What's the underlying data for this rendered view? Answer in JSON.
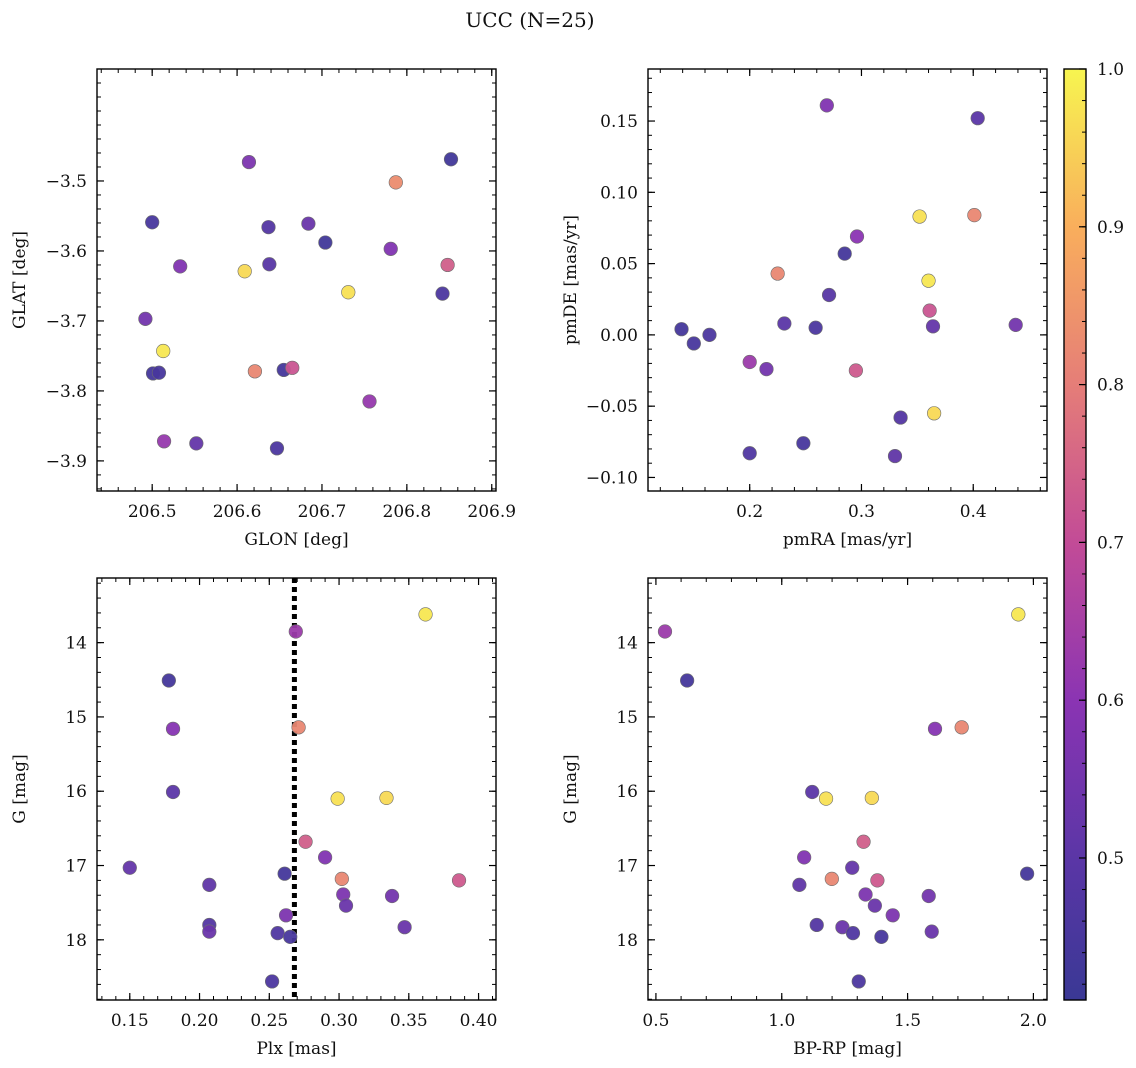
{
  "figure": {
    "title": "UCC (N=25)"
  },
  "colorbar": {
    "range": [
      0.41,
      1.0
    ],
    "ticks": [
      0.5,
      0.6,
      0.7,
      0.8,
      0.9,
      1.0
    ],
    "tick_labels": [
      "0.5",
      "0.6",
      "0.7",
      "0.8",
      "0.9",
      "1.0"
    ],
    "colormap": "plasma"
  },
  "chart_data": [
    {
      "type": "scatter",
      "title": "",
      "xlabel": "GLON [deg]",
      "ylabel": "GLAT [deg]",
      "xlim": [
        206.435,
        206.905
      ],
      "ylim": [
        -3.943,
        -3.34
      ],
      "y_inverted": false,
      "xticks": [
        206.5,
        206.6,
        206.7,
        206.8,
        206.9
      ],
      "xtick_labels": [
        "206.5",
        "206.6",
        "206.7",
        "206.8",
        "206.9"
      ],
      "yticks": [
        -3.5,
        -3.6,
        -3.7,
        -3.8,
        -3.9
      ],
      "ytick_labels": [
        "−3.5",
        "−3.6",
        "−3.7",
        "−3.8",
        "−3.9"
      ],
      "points": [
        {
          "x": 206.5,
          "y": -3.559,
          "c": 0.45
        },
        {
          "x": 206.533,
          "y": -3.622,
          "c": 0.58
        },
        {
          "x": 206.492,
          "y": -3.697,
          "c": 0.55
        },
        {
          "x": 206.513,
          "y": -3.743,
          "c": 0.98
        },
        {
          "x": 206.501,
          "y": -3.775,
          "c": 0.44
        },
        {
          "x": 206.508,
          "y": -3.774,
          "c": 0.45
        },
        {
          "x": 206.514,
          "y": -3.872,
          "c": 0.62
        },
        {
          "x": 206.552,
          "y": -3.875,
          "c": 0.52
        },
        {
          "x": 206.609,
          "y": -3.629,
          "c": 0.96
        },
        {
          "x": 206.614,
          "y": -3.473,
          "c": 0.57
        },
        {
          "x": 206.621,
          "y": -3.772,
          "c": 0.82
        },
        {
          "x": 206.637,
          "y": -3.566,
          "c": 0.48
        },
        {
          "x": 206.638,
          "y": -3.619,
          "c": 0.49
        },
        {
          "x": 206.647,
          "y": -3.882,
          "c": 0.46
        },
        {
          "x": 206.655,
          "y": -3.77,
          "c": 0.44
        },
        {
          "x": 206.665,
          "y": -3.767,
          "c": 0.72
        },
        {
          "x": 206.684,
          "y": -3.561,
          "c": 0.53
        },
        {
          "x": 206.704,
          "y": -3.588,
          "c": 0.43
        },
        {
          "x": 206.731,
          "y": -3.659,
          "c": 0.97
        },
        {
          "x": 206.756,
          "y": -3.815,
          "c": 0.62
        },
        {
          "x": 206.781,
          "y": -3.597,
          "c": 0.58
        },
        {
          "x": 206.787,
          "y": -3.502,
          "c": 0.83
        },
        {
          "x": 206.842,
          "y": -3.661,
          "c": 0.46
        },
        {
          "x": 206.848,
          "y": -3.62,
          "c": 0.74
        },
        {
          "x": 206.852,
          "y": -3.469,
          "c": 0.43
        }
      ]
    },
    {
      "type": "scatter",
      "title": "",
      "xlabel": "pmRA [mas/yr]",
      "ylabel": "pmDE [mas/yr]",
      "xlim": [
        0.109,
        0.466
      ],
      "ylim": [
        -0.1095,
        0.1865
      ],
      "y_inverted": false,
      "xticks": [
        0.2,
        0.3,
        0.4
      ],
      "xtick_labels": [
        "0.2",
        "0.3",
        "0.4"
      ],
      "yticks": [
        0.15,
        0.1,
        0.05,
        0.0,
        -0.05,
        -0.1
      ],
      "ytick_labels": [
        "0.15",
        "0.10",
        "0.05",
        "0.00",
        "−0.05",
        "−0.10"
      ],
      "points": [
        {
          "x": 0.139,
          "y": 0.004,
          "c": 0.44
        },
        {
          "x": 0.15,
          "y": -0.006,
          "c": 0.45
        },
        {
          "x": 0.164,
          "y": 0.0,
          "c": 0.46
        },
        {
          "x": 0.2,
          "y": -0.019,
          "c": 0.63
        },
        {
          "x": 0.2,
          "y": -0.083,
          "c": 0.47
        },
        {
          "x": 0.215,
          "y": -0.024,
          "c": 0.55
        },
        {
          "x": 0.225,
          "y": 0.043,
          "c": 0.82
        },
        {
          "x": 0.231,
          "y": 0.008,
          "c": 0.5
        },
        {
          "x": 0.248,
          "y": -0.076,
          "c": 0.45
        },
        {
          "x": 0.259,
          "y": 0.005,
          "c": 0.46
        },
        {
          "x": 0.269,
          "y": 0.161,
          "c": 0.58
        },
        {
          "x": 0.271,
          "y": 0.028,
          "c": 0.49
        },
        {
          "x": 0.285,
          "y": 0.057,
          "c": 0.44
        },
        {
          "x": 0.295,
          "y": -0.025,
          "c": 0.73
        },
        {
          "x": 0.296,
          "y": 0.069,
          "c": 0.6
        },
        {
          "x": 0.33,
          "y": -0.085,
          "c": 0.51
        },
        {
          "x": 0.335,
          "y": -0.058,
          "c": 0.48
        },
        {
          "x": 0.352,
          "y": 0.083,
          "c": 0.97
        },
        {
          "x": 0.36,
          "y": 0.038,
          "c": 0.98
        },
        {
          "x": 0.361,
          "y": 0.017,
          "c": 0.72
        },
        {
          "x": 0.364,
          "y": 0.006,
          "c": 0.52
        },
        {
          "x": 0.365,
          "y": -0.055,
          "c": 0.96
        },
        {
          "x": 0.401,
          "y": 0.084,
          "c": 0.82
        },
        {
          "x": 0.404,
          "y": 0.152,
          "c": 0.5
        },
        {
          "x": 0.438,
          "y": 0.007,
          "c": 0.55
        }
      ]
    },
    {
      "type": "scatter",
      "title": "",
      "xlabel": "Plx [mas]",
      "ylabel": "G [mag]",
      "xlim": [
        0.1265,
        0.4125
      ],
      "ylim": [
        18.81,
        13.13
      ],
      "y_inverted": true,
      "vline": {
        "x": 0.268,
        "style": "dotted",
        "color": "#000000"
      },
      "xticks": [
        0.15,
        0.2,
        0.25,
        0.3,
        0.35,
        0.4
      ],
      "xtick_labels": [
        "0.15",
        "0.20",
        "0.25",
        "0.30",
        "0.35",
        "0.40"
      ],
      "yticks": [
        14,
        15,
        16,
        17,
        18
      ],
      "ytick_labels": [
        "14",
        "15",
        "16",
        "17",
        "18"
      ],
      "points": [
        {
          "x": 0.15,
          "y": 17.03,
          "c": 0.52
        },
        {
          "x": 0.178,
          "y": 14.51,
          "c": 0.44
        },
        {
          "x": 0.181,
          "y": 15.16,
          "c": 0.59
        },
        {
          "x": 0.181,
          "y": 16.01,
          "c": 0.5
        },
        {
          "x": 0.207,
          "y": 17.26,
          "c": 0.51
        },
        {
          "x": 0.207,
          "y": 17.8,
          "c": 0.48
        },
        {
          "x": 0.207,
          "y": 17.89,
          "c": 0.53
        },
        {
          "x": 0.252,
          "y": 18.56,
          "c": 0.46
        },
        {
          "x": 0.256,
          "y": 17.91,
          "c": 0.47
        },
        {
          "x": 0.261,
          "y": 17.11,
          "c": 0.44
        },
        {
          "x": 0.262,
          "y": 17.67,
          "c": 0.57
        },
        {
          "x": 0.265,
          "y": 17.96,
          "c": 0.45
        },
        {
          "x": 0.269,
          "y": 13.85,
          "c": 0.63
        },
        {
          "x": 0.271,
          "y": 15.14,
          "c": 0.82
        },
        {
          "x": 0.276,
          "y": 16.68,
          "c": 0.74
        },
        {
          "x": 0.29,
          "y": 16.89,
          "c": 0.58
        },
        {
          "x": 0.299,
          "y": 16.1,
          "c": 0.97
        },
        {
          "x": 0.302,
          "y": 17.18,
          "c": 0.82
        },
        {
          "x": 0.303,
          "y": 17.39,
          "c": 0.57
        },
        {
          "x": 0.305,
          "y": 17.54,
          "c": 0.53
        },
        {
          "x": 0.334,
          "y": 16.09,
          "c": 0.96
        },
        {
          "x": 0.338,
          "y": 17.41,
          "c": 0.55
        },
        {
          "x": 0.347,
          "y": 17.83,
          "c": 0.53
        },
        {
          "x": 0.362,
          "y": 13.62,
          "c": 0.98
        },
        {
          "x": 0.386,
          "y": 17.2,
          "c": 0.73
        }
      ]
    },
    {
      "type": "scatter",
      "title": "",
      "xlabel": "BP-RP [mag]",
      "ylabel": "G [mag]",
      "xlim": [
        0.4685,
        2.054
      ],
      "ylim": [
        18.81,
        13.13
      ],
      "y_inverted": true,
      "xticks": [
        0.5,
        1.0,
        1.5,
        2.0
      ],
      "xtick_labels": [
        "0.5",
        "1.0",
        "1.5",
        "2.0"
      ],
      "yticks": [
        14,
        15,
        16,
        17,
        18
      ],
      "ytick_labels": [
        "14",
        "15",
        "16",
        "17",
        "18"
      ],
      "points": [
        {
          "x": 0.536,
          "y": 13.85,
          "c": 0.63
        },
        {
          "x": 0.624,
          "y": 14.51,
          "c": 0.44
        },
        {
          "x": 1.07,
          "y": 17.26,
          "c": 0.51
        },
        {
          "x": 1.089,
          "y": 16.89,
          "c": 0.58
        },
        {
          "x": 1.121,
          "y": 16.01,
          "c": 0.5
        },
        {
          "x": 1.139,
          "y": 17.8,
          "c": 0.48
        },
        {
          "x": 1.176,
          "y": 16.1,
          "c": 0.97
        },
        {
          "x": 1.199,
          "y": 17.18,
          "c": 0.82
        },
        {
          "x": 1.241,
          "y": 17.83,
          "c": 0.53
        },
        {
          "x": 1.28,
          "y": 17.03,
          "c": 0.52
        },
        {
          "x": 1.283,
          "y": 17.91,
          "c": 0.47
        },
        {
          "x": 1.306,
          "y": 18.56,
          "c": 0.46
        },
        {
          "x": 1.325,
          "y": 16.68,
          "c": 0.74
        },
        {
          "x": 1.333,
          "y": 17.39,
          "c": 0.57
        },
        {
          "x": 1.358,
          "y": 16.09,
          "c": 0.96
        },
        {
          "x": 1.37,
          "y": 17.54,
          "c": 0.53
        },
        {
          "x": 1.38,
          "y": 17.2,
          "c": 0.73
        },
        {
          "x": 1.396,
          "y": 17.96,
          "c": 0.45
        },
        {
          "x": 1.441,
          "y": 17.67,
          "c": 0.57
        },
        {
          "x": 1.584,
          "y": 17.41,
          "c": 0.55
        },
        {
          "x": 1.596,
          "y": 17.89,
          "c": 0.53
        },
        {
          "x": 1.609,
          "y": 15.16,
          "c": 0.59
        },
        {
          "x": 1.715,
          "y": 15.14,
          "c": 0.82
        },
        {
          "x": 1.94,
          "y": 13.62,
          "c": 0.98
        },
        {
          "x": 1.975,
          "y": 17.11,
          "c": 0.44
        }
      ]
    }
  ]
}
